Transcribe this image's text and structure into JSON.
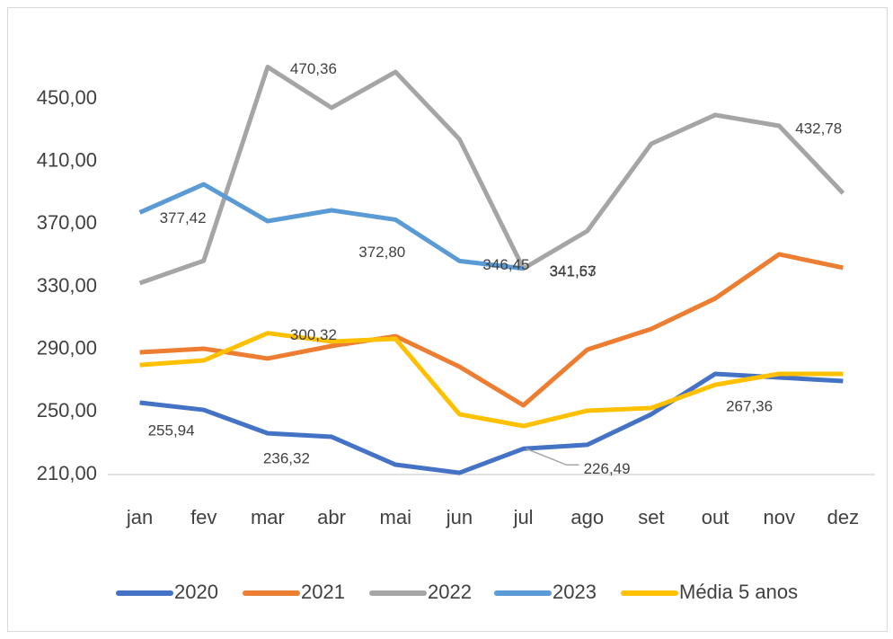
{
  "chart_data": {
    "type": "line",
    "categories": [
      "jan",
      "fev",
      "mar",
      "abr",
      "mai",
      "jun",
      "jul",
      "ago",
      "set",
      "out",
      "nov",
      "dez"
    ],
    "ylim": [
      210,
      474
    ],
    "yticks": [
      {
        "value": 210,
        "label": "210,00"
      },
      {
        "value": 250,
        "label": "250,00"
      },
      {
        "value": 290,
        "label": "290,00"
      },
      {
        "value": 330,
        "label": "330,00"
      },
      {
        "value": 370,
        "label": "370,00"
      },
      {
        "value": 410,
        "label": "410,00"
      },
      {
        "value": 450,
        "label": "450,00"
      }
    ],
    "grid": false,
    "legend": "bottom",
    "series": [
      {
        "name": "2020",
        "color": "#4472c4",
        "values": [
          255.94,
          251.3,
          236.32,
          234.1,
          216.3,
          211.1,
          226.49,
          229,
          248.5,
          274.3,
          272,
          269.7
        ],
        "value_labels": [
          "255,94",
          null,
          "236,32",
          null,
          null,
          null,
          "226,49",
          null,
          null,
          null,
          null,
          null
        ]
      },
      {
        "name": "2021",
        "color": "#ed7d31",
        "values": [
          288.1,
          290.4,
          284.1,
          292.1,
          298.4,
          278.9,
          254.2,
          289.8,
          303,
          322.5,
          350.7,
          342.1
        ]
      },
      {
        "name": "2022",
        "color": "#a5a5a5",
        "values": [
          332.3,
          346.6,
          470.36,
          444.3,
          467.2,
          424.2,
          341.57,
          365.6,
          421.3,
          439.7,
          432.78,
          389.7
        ],
        "value_labels": [
          null,
          null,
          "470,36",
          null,
          null,
          null,
          "341,57",
          null,
          null,
          null,
          "432,78",
          null
        ]
      },
      {
        "name": "2023",
        "color": "#5b9bd5",
        "values": [
          377.42,
          395.4,
          371.9,
          378.8,
          372.8,
          346.45,
          341.63,
          null,
          null,
          null,
          null,
          null
        ],
        "value_labels": [
          "377,42",
          null,
          null,
          null,
          "372,80",
          "346,45",
          "341,63",
          null,
          null,
          null,
          null,
          null
        ]
      },
      {
        "name": "Média 5 anos",
        "color": "#ffc000",
        "values": [
          280,
          282.9,
          300.32,
          295,
          296.7,
          248.5,
          241,
          250.8,
          252.5,
          267.36,
          274.3,
          274.3
        ],
        "value_labels": [
          null,
          null,
          "300,32",
          null,
          null,
          null,
          null,
          null,
          null,
          "267,36",
          null,
          null
        ]
      }
    ]
  }
}
